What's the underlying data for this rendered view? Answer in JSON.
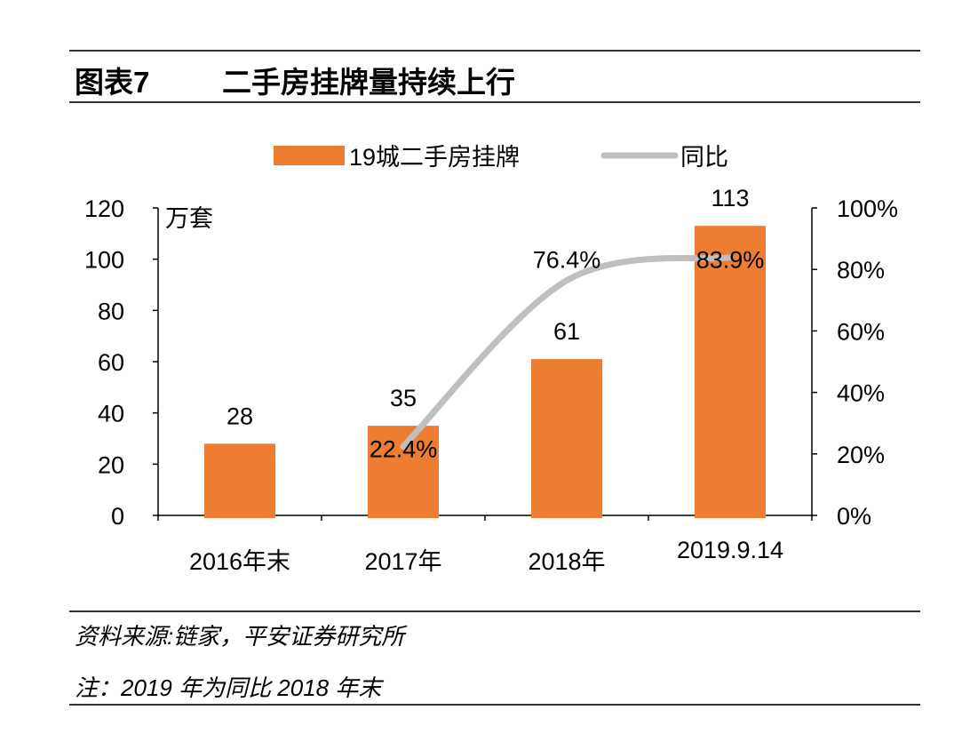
{
  "header": {
    "figure_label": "图表7",
    "title": "二手房挂牌量持续上行"
  },
  "footer": {
    "source": "资料来源:链家，平安证券研究所",
    "note": "注：2019 年为同比 2018 年末"
  },
  "chart_data": {
    "type": "bar+line",
    "categories": [
      "2016年末",
      "2017年",
      "2018年",
      "2019.9.14"
    ],
    "series": [
      {
        "name": "19城二手房挂牌",
        "type": "bar",
        "axis": "left",
        "color": "#ED7D31",
        "values": [
          28,
          35,
          61,
          113
        ],
        "labels": [
          "28",
          "35",
          "61",
          "113"
        ]
      },
      {
        "name": "同比",
        "type": "line",
        "axis": "right",
        "color": "#BFBFBF",
        "values": [
          null,
          22.4,
          76.4,
          83.9
        ],
        "labels": [
          "",
          "22.4%",
          "76.4%",
          "83.9%"
        ]
      }
    ],
    "left_axis": {
      "unit_label": "万套",
      "ylim": [
        0,
        120
      ],
      "ticks": [
        "0",
        "20",
        "40",
        "60",
        "80",
        "100",
        "120"
      ]
    },
    "right_axis": {
      "ylim": [
        0,
        100
      ],
      "ticks": [
        "0%",
        "20%",
        "40%",
        "60%",
        "80%",
        "100%"
      ]
    },
    "legend": "top",
    "grid": false
  }
}
